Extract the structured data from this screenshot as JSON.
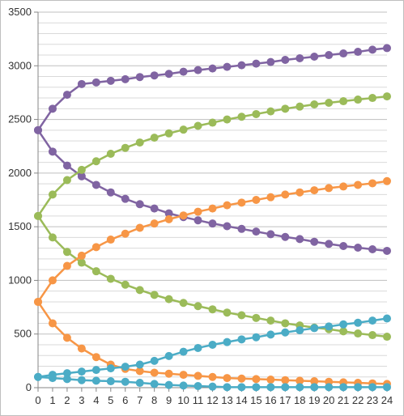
{
  "chart_data": {
    "type": "line",
    "title": "",
    "xlabel": "",
    "ylabel": "",
    "x": [
      0,
      1,
      2,
      3,
      4,
      5,
      6,
      7,
      8,
      9,
      10,
      11,
      12,
      13,
      14,
      15,
      16,
      17,
      18,
      19,
      20,
      21,
      22,
      23,
      24
    ],
    "ylim": [
      0,
      3500
    ],
    "y_ticks": [
      0,
      500,
      1000,
      1500,
      2000,
      2500,
      3000,
      3500
    ],
    "y_tick_labels": [
      "0",
      "500",
      "1000",
      "1500",
      "2000",
      "2500",
      "3000",
      "3500"
    ],
    "x_tick_labels": [
      "0",
      "1",
      "2",
      "3",
      "4",
      "5",
      "6",
      "7",
      "8",
      "9",
      "10",
      "11",
      "12",
      "13",
      "14",
      "15",
      "16",
      "17",
      "18",
      "19",
      "20",
      "21",
      "22",
      "23",
      "24"
    ],
    "grid": true,
    "legend": "none",
    "series": [
      {
        "color": "#8064a2",
        "values": [
          2400,
          2600,
          2730,
          2830,
          2845,
          2860,
          2875,
          2895,
          2910,
          2925,
          2945,
          2960,
          2975,
          2990,
          3005,
          3020,
          3035,
          3055,
          3070,
          3085,
          3100,
          3115,
          3130,
          3150,
          3165
        ]
      },
      {
        "color": "#8064a2",
        "values": [
          2400,
          2200,
          2070,
          1970,
          1890,
          1820,
          1760,
          1710,
          1670,
          1625,
          1590,
          1560,
          1530,
          1505,
          1480,
          1455,
          1430,
          1405,
          1385,
          1360,
          1340,
          1320,
          1305,
          1290,
          1275
        ]
      },
      {
        "color": "#9bbb59",
        "values": [
          1600,
          1800,
          1935,
          2030,
          2110,
          2180,
          2235,
          2285,
          2330,
          2370,
          2405,
          2440,
          2470,
          2500,
          2525,
          2550,
          2575,
          2600,
          2620,
          2640,
          2655,
          2670,
          2685,
          2700,
          2715
        ]
      },
      {
        "color": "#9bbb59",
        "values": [
          1600,
          1400,
          1265,
          1165,
          1085,
          1015,
          960,
          910,
          865,
          825,
          790,
          760,
          730,
          700,
          675,
          650,
          625,
          600,
          580,
          560,
          545,
          525,
          505,
          490,
          475
        ]
      },
      {
        "color": "#f79646",
        "values": [
          800,
          1000,
          1135,
          1230,
          1310,
          1380,
          1435,
          1490,
          1530,
          1570,
          1605,
          1640,
          1670,
          1700,
          1725,
          1750,
          1775,
          1800,
          1820,
          1840,
          1860,
          1875,
          1890,
          1905,
          1925
        ]
      },
      {
        "color": "#f79646",
        "values": [
          800,
          600,
          465,
          365,
          285,
          215,
          175,
          155,
          140,
          130,
          120,
          110,
          100,
          90,
          85,
          80,
          75,
          70,
          65,
          60,
          55,
          50,
          45,
          40,
          35
        ]
      },
      {
        "color": "#4bacc6",
        "values": [
          100,
          120,
          135,
          150,
          165,
          180,
          195,
          215,
          250,
          295,
          335,
          370,
          400,
          425,
          450,
          470,
          495,
          515,
          535,
          555,
          570,
          590,
          605,
          625,
          645
        ]
      },
      {
        "color": "#4bacc6",
        "values": [
          100,
          90,
          80,
          70,
          65,
          60,
          55,
          45,
          35,
          25,
          20,
          15,
          10,
          5,
          5,
          5,
          5,
          5,
          5,
          5,
          5,
          5,
          5,
          5,
          5
        ]
      }
    ]
  }
}
